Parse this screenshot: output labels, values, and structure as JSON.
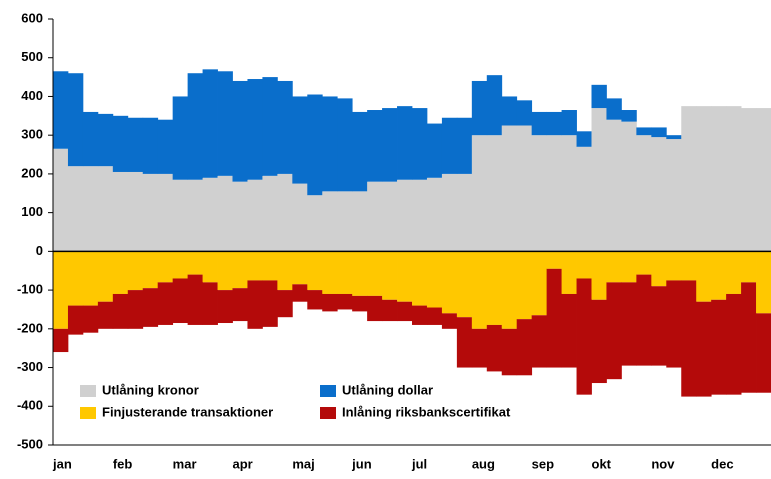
{
  "chart_data": {
    "type": "stacked_bar",
    "categories": [
      "jan",
      null,
      null,
      null,
      "feb",
      null,
      null,
      null,
      "mar",
      null,
      null,
      null,
      "apr",
      null,
      null,
      null,
      "maj",
      null,
      null,
      null,
      "jun",
      null,
      null,
      null,
      "jul",
      null,
      null,
      null,
      "aug",
      null,
      null,
      null,
      "sep",
      null,
      null,
      null,
      "okt",
      null,
      null,
      null,
      "nov",
      null,
      null,
      null,
      "dec",
      null,
      null,
      null
    ],
    "series": [
      {
        "name": "Utlåning kronor",
        "color": "#d0d0d0",
        "values": [
          265,
          220,
          220,
          220,
          205,
          205,
          200,
          200,
          185,
          185,
          190,
          195,
          180,
          185,
          195,
          200,
          175,
          145,
          155,
          155,
          155,
          180,
          180,
          185,
          185,
          190,
          200,
          200,
          300,
          300,
          325,
          325,
          300,
          300,
          300,
          270,
          370,
          340,
          335,
          300,
          295,
          290,
          375,
          375,
          375,
          375,
          370,
          370
        ]
      },
      {
        "name": "Utlåning dollar",
        "color": "#0a6ecb",
        "values": [
          200,
          240,
          140,
          135,
          145,
          140,
          145,
          140,
          215,
          275,
          280,
          270,
          260,
          260,
          255,
          240,
          225,
          260,
          245,
          240,
          205,
          185,
          190,
          190,
          185,
          140,
          145,
          145,
          140,
          155,
          75,
          65,
          60,
          60,
          65,
          40,
          60,
          55,
          30,
          20,
          25,
          10,
          0,
          0,
          0,
          0,
          0,
          0
        ]
      },
      {
        "name": "Finjusterande transaktioner",
        "color": "#ffc800",
        "values": [
          -200,
          -140,
          -140,
          -130,
          -110,
          -100,
          -95,
          -80,
          -70,
          -60,
          -80,
          -100,
          -95,
          -75,
          -75,
          -100,
          -85,
          -100,
          -110,
          -110,
          -115,
          -115,
          -125,
          -130,
          -140,
          -145,
          -160,
          -170,
          -200,
          -190,
          -200,
          -175,
          -165,
          -45,
          -110,
          -70,
          -125,
          -80,
          -80,
          -60,
          -90,
          -75,
          -75,
          -130,
          -125,
          -110,
          -80,
          -160
        ]
      },
      {
        "name": "Inlåning riksbankscertifikat",
        "color": "#b40a0a",
        "values": [
          -60,
          -75,
          -70,
          -70,
          -90,
          -100,
          -100,
          -110,
          -115,
          -130,
          -110,
          -85,
          -85,
          -125,
          -120,
          -70,
          -45,
          -50,
          -45,
          -40,
          -40,
          -65,
          -55,
          -50,
          -50,
          -45,
          -40,
          -130,
          -100,
          -120,
          -120,
          -145,
          -135,
          -255,
          -190,
          -300,
          -215,
          -250,
          -215,
          -235,
          -205,
          -225,
          -300,
          -245,
          -245,
          -260,
          -285,
          -205
        ]
      }
    ],
    "ylim": [
      -500,
      600
    ],
    "yticks": [
      -500,
      -400,
      -300,
      -200,
      -100,
      0,
      100,
      200,
      300,
      400,
      500,
      600
    ]
  }
}
